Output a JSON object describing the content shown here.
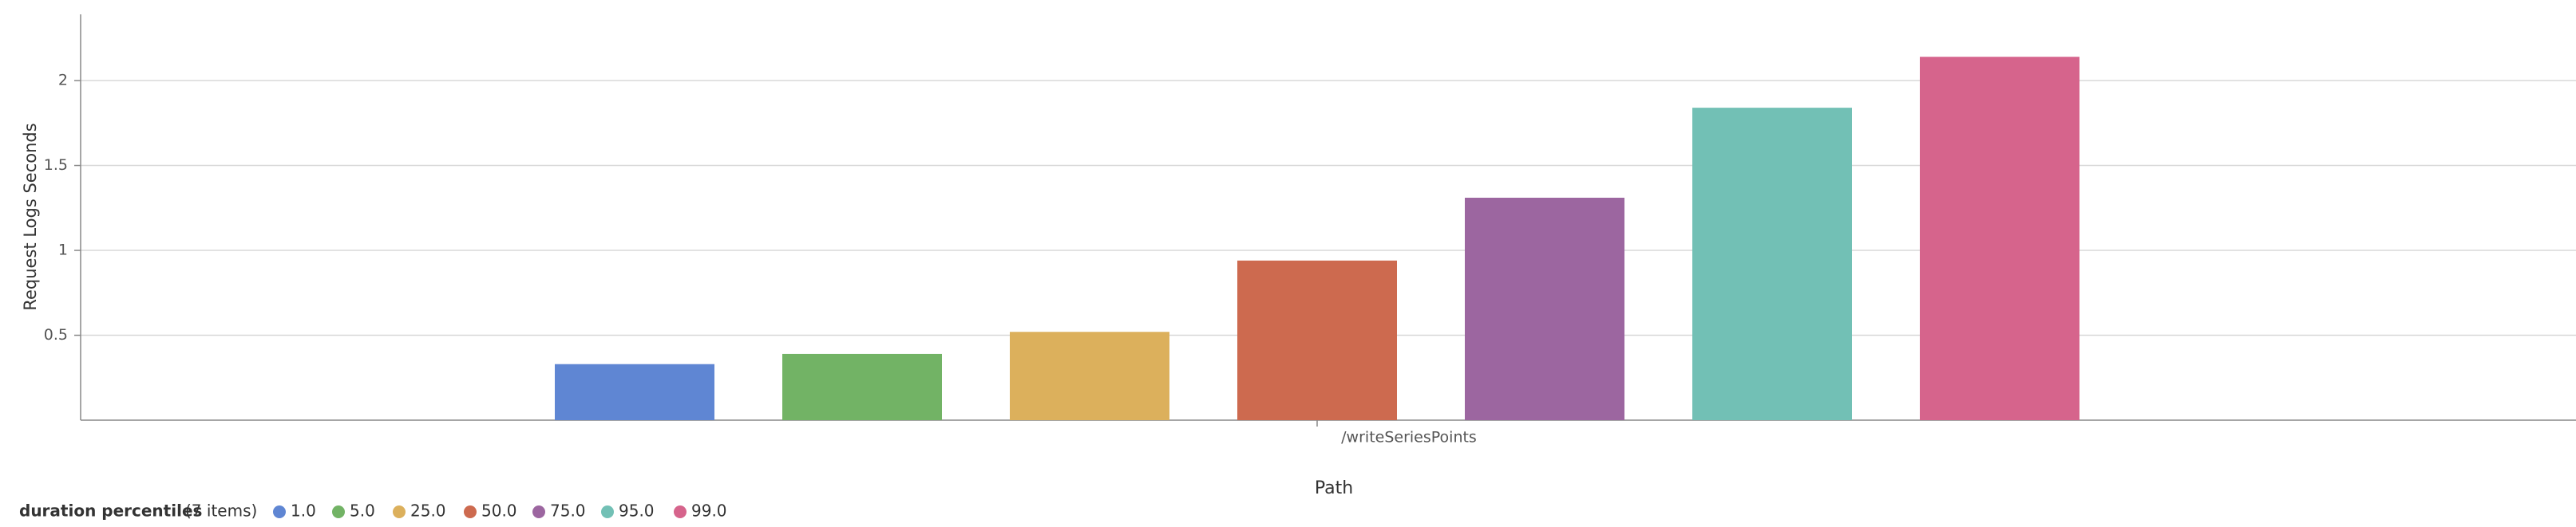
{
  "chart_data": {
    "type": "bar",
    "categories": [
      "/writeSeriesPoints"
    ],
    "x_label": "Path",
    "y_label": "Request Logs Seconds",
    "legend_title": "duration percentiles",
    "legend_count": "(7 items)",
    "series": [
      {
        "name": "1.0",
        "color": "#5f86d3",
        "values": [
          0.33
        ]
      },
      {
        "name": "5.0",
        "color": "#72b365",
        "values": [
          0.39
        ]
      },
      {
        "name": "25.0",
        "color": "#dcb05c",
        "values": [
          0.52
        ]
      },
      {
        "name": "50.0",
        "color": "#cd6a4f",
        "values": [
          0.94
        ]
      },
      {
        "name": "75.0",
        "color": "#9c66a0",
        "values": [
          1.31
        ]
      },
      {
        "name": "95.0",
        "color": "#72c0b5",
        "values": [
          1.84
        ]
      },
      {
        "name": "99.0",
        "color": "#d6648c",
        "values": [
          2.14
        ]
      }
    ],
    "ylim": [
      0,
      2.39
    ],
    "yticks": [
      0.5,
      1,
      1.5,
      2
    ],
    "grid": true
  }
}
